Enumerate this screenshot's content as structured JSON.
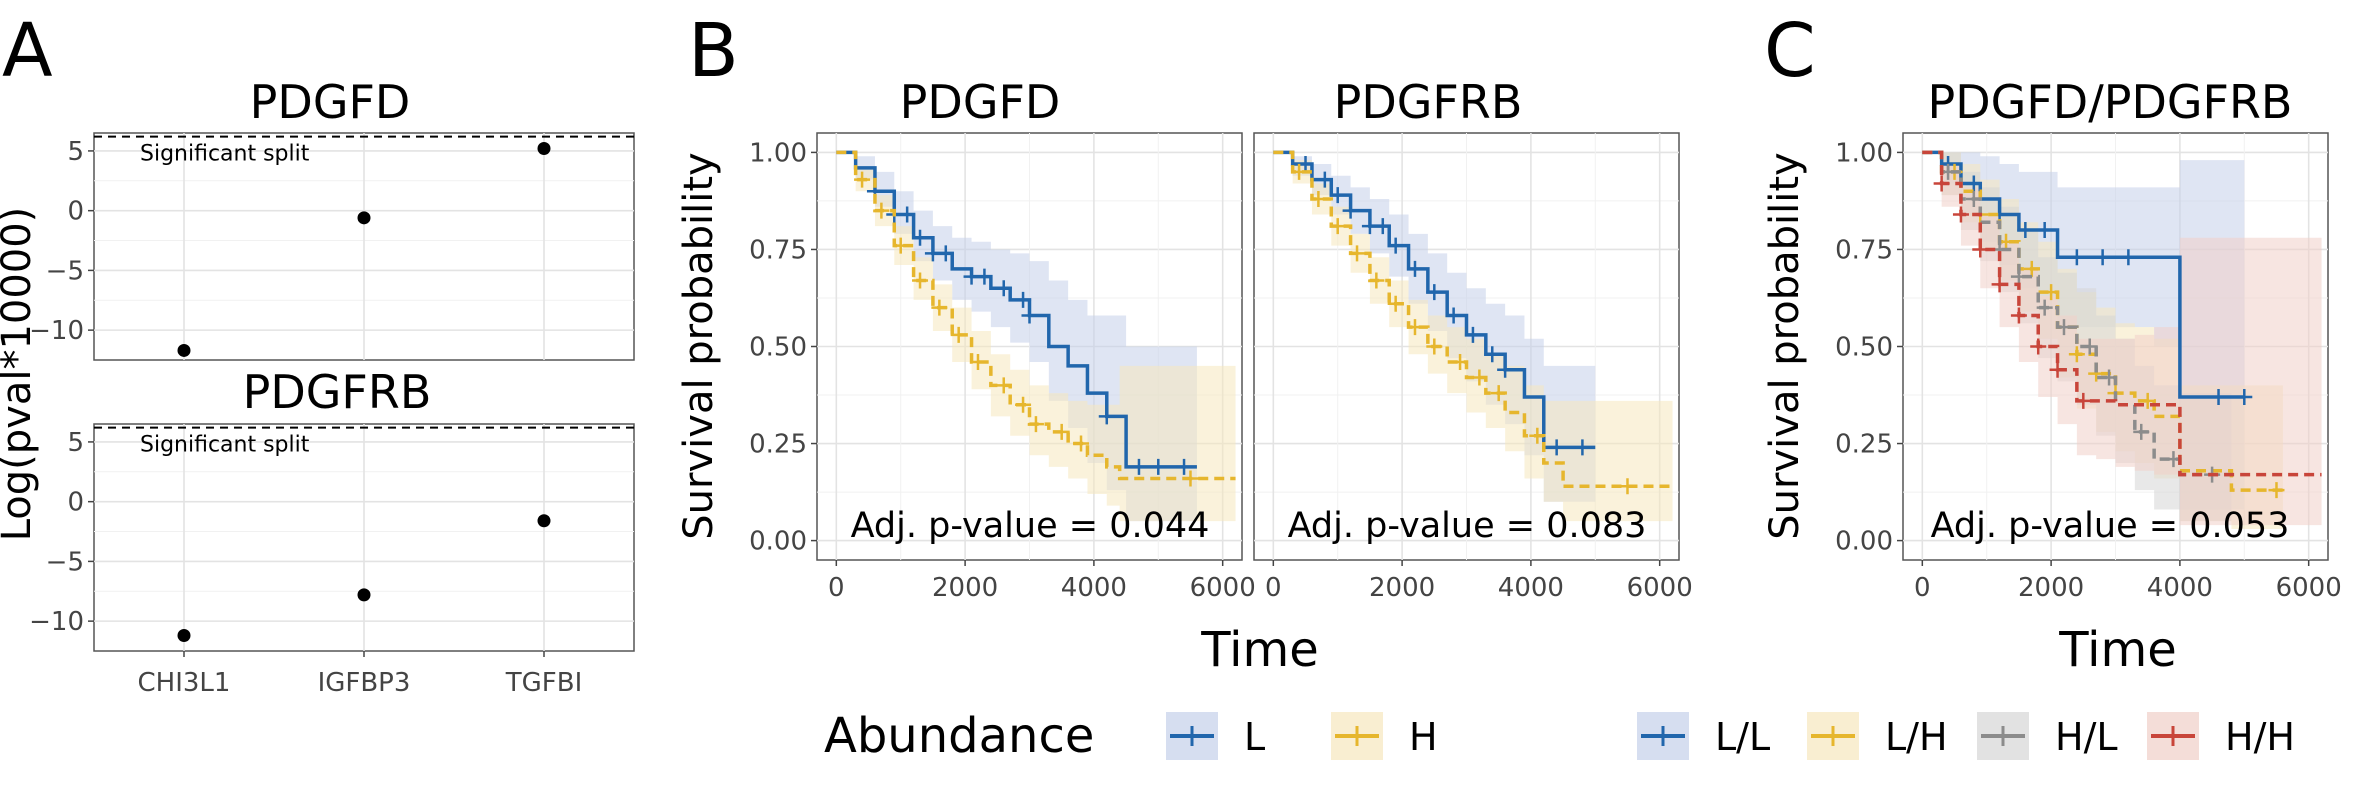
{
  "panels": {
    "a": "A",
    "b": "B",
    "c": "C"
  },
  "colors": {
    "L": "#2166ac",
    "H": "#e6b62d",
    "LL": "#2166ac",
    "LH": "#e6b62d",
    "HL": "#8c8c8c",
    "HH": "#c8453a",
    "LL_fill": "#c5d0ea",
    "LH_fill": "#f6e7bd",
    "HL_fill": "#d6d6d6",
    "HH_fill": "#f0cfc8"
  },
  "chart_data": [
    {
      "id": "a1",
      "type": "scatter",
      "title": "PDGFD",
      "ylabel": "Log(pval*10000)",
      "categories": [
        "CHI3L1",
        "IGFBP3",
        "TGFBI"
      ],
      "values": [
        -11.7,
        -0.6,
        5.2
      ],
      "ylim": [
        -12.5,
        6.5
      ],
      "yticks": [
        "5",
        "0",
        "−5",
        "−10"
      ],
      "ytick_values": [
        5,
        0,
        -5,
        -10
      ],
      "threshold": {
        "value": 6.2,
        "label": "Significant split"
      },
      "grid": true
    },
    {
      "id": "a2",
      "type": "scatter",
      "title": "PDGFRB",
      "ylabel": "",
      "categories": [
        "CHI3L1",
        "IGFBP3",
        "TGFBI"
      ],
      "values": [
        -11.2,
        -7.8,
        -1.6
      ],
      "ylim": [
        -12.5,
        6.5
      ],
      "yticks": [
        "5",
        "0",
        "−5",
        "−10"
      ],
      "ytick_values": [
        5,
        0,
        -5,
        -10
      ],
      "threshold": {
        "value": 6.2,
        "label": "Significant split"
      },
      "grid": true
    },
    {
      "id": "b1",
      "type": "line",
      "title": "PDGFD",
      "ylabel": "Survival probability",
      "xlabel": "Time",
      "xlim": [
        -300,
        6300
      ],
      "ylim": [
        -0.05,
        1.05
      ],
      "xticks": [
        "0",
        "2000",
        "4000",
        "6000"
      ],
      "xtick_values": [
        0,
        2000,
        4000,
        6000
      ],
      "yticks": [
        "0.00",
        "0.25",
        "0.50",
        "0.75",
        "1.00"
      ],
      "ytick_values": [
        0,
        0.25,
        0.5,
        0.75,
        1.0
      ],
      "annotation": "Adj. p-value = 0.044",
      "grid": true,
      "series": [
        {
          "name": "L",
          "color_key": "L",
          "dash": false,
          "x": [
            0,
            300,
            600,
            900,
            1200,
            1500,
            1800,
            2100,
            2400,
            2700,
            3000,
            3300,
            3600,
            3900,
            4200,
            4500,
            5600
          ],
          "y": [
            1.0,
            0.96,
            0.9,
            0.84,
            0.78,
            0.74,
            0.7,
            0.68,
            0.65,
            0.62,
            0.58,
            0.5,
            0.45,
            0.38,
            0.32,
            0.19,
            0.19
          ],
          "lo": [
            1.0,
            0.93,
            0.86,
            0.79,
            0.72,
            0.67,
            0.62,
            0.59,
            0.55,
            0.51,
            0.46,
            0.36,
            0.29,
            0.2,
            0.13,
            0.05,
            0.05
          ],
          "hi": [
            1.0,
            0.99,
            0.95,
            0.9,
            0.85,
            0.81,
            0.78,
            0.77,
            0.75,
            0.74,
            0.72,
            0.67,
            0.62,
            0.58,
            0.58,
            0.5,
            0.5
          ],
          "censor_x": [
            600,
            900,
            1100,
            1300,
            1500,
            1700,
            2100,
            2300,
            2600,
            2900,
            3000,
            4200,
            4700,
            5000,
            5400
          ]
        },
        {
          "name": "H",
          "color_key": "H",
          "dash": true,
          "x": [
            0,
            300,
            600,
            900,
            1200,
            1500,
            1800,
            2100,
            2400,
            2700,
            3000,
            3300,
            3600,
            3900,
            4200,
            4400,
            6200
          ],
          "y": [
            1.0,
            0.93,
            0.85,
            0.76,
            0.67,
            0.6,
            0.53,
            0.46,
            0.4,
            0.35,
            0.3,
            0.28,
            0.25,
            0.22,
            0.19,
            0.16,
            0.16
          ],
          "lo": [
            1.0,
            0.9,
            0.81,
            0.71,
            0.62,
            0.54,
            0.46,
            0.39,
            0.32,
            0.27,
            0.22,
            0.19,
            0.16,
            0.12,
            0.09,
            0.05,
            0.05
          ],
          "hi": [
            1.0,
            0.96,
            0.89,
            0.81,
            0.73,
            0.66,
            0.6,
            0.54,
            0.48,
            0.44,
            0.4,
            0.38,
            0.36,
            0.35,
            0.35,
            0.45,
            0.45
          ],
          "censor_x": [
            400,
            700,
            1000,
            1300,
            1600,
            1900,
            2200,
            2600,
            2900,
            3100,
            3500,
            3800,
            5500
          ]
        }
      ]
    },
    {
      "id": "b2",
      "type": "line",
      "title": "PDGFRB",
      "ylabel": "",
      "xlabel": "",
      "xlim": [
        -300,
        6300
      ],
      "ylim": [
        -0.05,
        1.05
      ],
      "xticks": [
        "0",
        "2000",
        "4000",
        "6000"
      ],
      "xtick_values": [
        0,
        2000,
        4000,
        6000
      ],
      "yticks": [
        "0.00",
        "0.25",
        "0.50",
        "0.75",
        "1.00"
      ],
      "ytick_values": [
        0,
        0.25,
        0.5,
        0.75,
        1.0
      ],
      "annotation": "Adj. p-value = 0.083",
      "grid": true,
      "series": [
        {
          "name": "L",
          "color_key": "L",
          "dash": false,
          "x": [
            0,
            300,
            600,
            900,
            1200,
            1500,
            1800,
            2100,
            2400,
            2700,
            3000,
            3300,
            3600,
            3900,
            4200,
            5000
          ],
          "y": [
            1.0,
            0.97,
            0.93,
            0.89,
            0.85,
            0.81,
            0.76,
            0.7,
            0.64,
            0.58,
            0.53,
            0.48,
            0.44,
            0.37,
            0.24,
            0.24
          ],
          "lo": [
            1.0,
            0.94,
            0.89,
            0.84,
            0.79,
            0.74,
            0.68,
            0.61,
            0.54,
            0.47,
            0.41,
            0.35,
            0.3,
            0.22,
            0.1,
            0.1
          ],
          "hi": [
            1.0,
            0.99,
            0.97,
            0.94,
            0.91,
            0.88,
            0.84,
            0.79,
            0.74,
            0.69,
            0.65,
            0.61,
            0.58,
            0.52,
            0.45,
            0.45
          ],
          "censor_x": [
            500,
            800,
            1000,
            1200,
            1500,
            1700,
            1900,
            2200,
            2500,
            2800,
            3100,
            3400,
            3600,
            4400,
            4800
          ]
        },
        {
          "name": "H",
          "color_key": "H",
          "dash": true,
          "x": [
            0,
            300,
            600,
            900,
            1200,
            1500,
            1800,
            2100,
            2400,
            2700,
            3000,
            3300,
            3600,
            3900,
            4200,
            4500,
            6200
          ],
          "y": [
            1.0,
            0.95,
            0.88,
            0.81,
            0.74,
            0.67,
            0.61,
            0.55,
            0.5,
            0.46,
            0.42,
            0.38,
            0.33,
            0.27,
            0.2,
            0.14,
            0.14
          ],
          "lo": [
            1.0,
            0.92,
            0.84,
            0.76,
            0.69,
            0.61,
            0.55,
            0.48,
            0.43,
            0.38,
            0.33,
            0.29,
            0.23,
            0.16,
            0.1,
            0.05,
            0.05
          ],
          "hi": [
            1.0,
            0.98,
            0.92,
            0.86,
            0.79,
            0.73,
            0.67,
            0.62,
            0.58,
            0.55,
            0.52,
            0.48,
            0.45,
            0.4,
            0.36,
            0.36,
            0.36
          ],
          "censor_x": [
            400,
            700,
            1000,
            1300,
            1600,
            1900,
            2200,
            2500,
            2900,
            3200,
            3500,
            4100,
            5500
          ]
        }
      ]
    },
    {
      "id": "c1",
      "type": "line",
      "title": "PDGFD/PDGFRB",
      "ylabel": "Survival probability",
      "xlabel": "Time",
      "xlim": [
        -300,
        6300
      ],
      "ylim": [
        -0.05,
        1.05
      ],
      "xticks": [
        "0",
        "2000",
        "4000",
        "6000"
      ],
      "xtick_values": [
        0,
        2000,
        4000,
        6000
      ],
      "yticks": [
        "0.00",
        "0.25",
        "0.50",
        "0.75",
        "1.00"
      ],
      "ytick_values": [
        0,
        0.25,
        0.5,
        0.75,
        1.0
      ],
      "annotation": "Adj. p-value = 0.053",
      "grid": true,
      "series": [
        {
          "name": "L/L",
          "color_key": "LL",
          "dash": false,
          "x": [
            0,
            300,
            600,
            900,
            1200,
            1500,
            1800,
            2100,
            3600,
            4000,
            5000
          ],
          "y": [
            1.0,
            0.97,
            0.92,
            0.88,
            0.84,
            0.8,
            0.8,
            0.73,
            0.73,
            0.37,
            0.37
          ],
          "lo": [
            1.0,
            0.92,
            0.84,
            0.77,
            0.71,
            0.65,
            0.63,
            0.55,
            0.5,
            0.08,
            0.08
          ],
          "hi": [
            1.0,
            1.0,
            1.0,
            0.99,
            0.97,
            0.95,
            0.95,
            0.91,
            0.91,
            0.98,
            0.98
          ],
          "censor_x": [
            400,
            800,
            1200,
            1600,
            1900,
            2400,
            2800,
            3200,
            4600,
            5000
          ]
        },
        {
          "name": "L/H",
          "color_key": "LH",
          "dash": true,
          "x": [
            0,
            300,
            600,
            900,
            1200,
            1500,
            1800,
            2100,
            2400,
            2700,
            3000,
            3300,
            3600,
            4000,
            4800,
            5600
          ],
          "y": [
            1.0,
            0.95,
            0.9,
            0.84,
            0.77,
            0.7,
            0.64,
            0.55,
            0.48,
            0.43,
            0.38,
            0.36,
            0.32,
            0.18,
            0.13,
            0.13
          ],
          "lo": [
            1.0,
            0.89,
            0.82,
            0.75,
            0.67,
            0.59,
            0.52,
            0.42,
            0.34,
            0.28,
            0.23,
            0.2,
            0.16,
            0.05,
            0.03,
            0.03
          ],
          "hi": [
            1.0,
            1.0,
            0.97,
            0.93,
            0.88,
            0.82,
            0.77,
            0.7,
            0.64,
            0.6,
            0.56,
            0.55,
            0.52,
            0.4,
            0.4,
            0.4
          ],
          "censor_x": [
            500,
            900,
            1300,
            1700,
            2000,
            2400,
            2700,
            3000,
            3500,
            5500
          ]
        },
        {
          "name": "H/L",
          "color_key": "HL",
          "dash": true,
          "x": [
            0,
            300,
            600,
            900,
            1200,
            1500,
            1800,
            2100,
            2400,
            2700,
            3000,
            3300,
            3600,
            4000,
            4800
          ],
          "y": [
            1.0,
            0.95,
            0.88,
            0.82,
            0.75,
            0.68,
            0.6,
            0.55,
            0.5,
            0.42,
            0.35,
            0.28,
            0.21,
            0.17,
            0.17
          ],
          "lo": [
            1.0,
            0.89,
            0.8,
            0.72,
            0.64,
            0.56,
            0.47,
            0.41,
            0.35,
            0.27,
            0.2,
            0.13,
            0.08,
            0.05,
            0.05
          ],
          "hi": [
            1.0,
            1.0,
            0.95,
            0.91,
            0.86,
            0.8,
            0.73,
            0.69,
            0.65,
            0.58,
            0.52,
            0.45,
            0.4,
            0.38,
            0.38
          ],
          "censor_x": [
            400,
            800,
            1200,
            1500,
            1900,
            2200,
            2600,
            2900,
            3400,
            3900,
            4500
          ]
        },
        {
          "name": "H/H",
          "color_key": "HH",
          "dash": true,
          "x": [
            0,
            300,
            600,
            900,
            1200,
            1500,
            1800,
            2100,
            2400,
            2700,
            3000,
            3300,
            3600,
            4000,
            4800,
            6200
          ],
          "y": [
            1.0,
            0.92,
            0.84,
            0.75,
            0.66,
            0.58,
            0.5,
            0.44,
            0.36,
            0.36,
            0.35,
            0.35,
            0.35,
            0.17,
            0.17,
            0.17
          ],
          "lo": [
            1.0,
            0.86,
            0.76,
            0.65,
            0.55,
            0.46,
            0.37,
            0.3,
            0.22,
            0.21,
            0.19,
            0.18,
            0.17,
            0.04,
            0.04,
            0.04
          ],
          "hi": [
            1.0,
            0.97,
            0.91,
            0.84,
            0.77,
            0.7,
            0.63,
            0.58,
            0.52,
            0.52,
            0.52,
            0.53,
            0.55,
            0.78,
            0.78,
            0.78
          ],
          "censor_x": [
            300,
            600,
            900,
            1200,
            1500,
            1800,
            2100,
            2500
          ]
        }
      ]
    }
  ],
  "legend_b": {
    "title": "Abundance",
    "items": [
      {
        "label": "L",
        "color_key": "L",
        "fill_key": "LL_fill"
      },
      {
        "label": "H",
        "color_key": "H",
        "fill_key": "LH_fill"
      }
    ]
  },
  "legend_c": {
    "items": [
      {
        "label": "L/L",
        "color_key": "LL",
        "fill_key": "LL_fill"
      },
      {
        "label": "L/H",
        "color_key": "LH",
        "fill_key": "LH_fill"
      },
      {
        "label": "H/L",
        "color_key": "HL",
        "fill_key": "HL_fill"
      },
      {
        "label": "H/H",
        "color_key": "HH",
        "fill_key": "HH_fill"
      }
    ]
  }
}
